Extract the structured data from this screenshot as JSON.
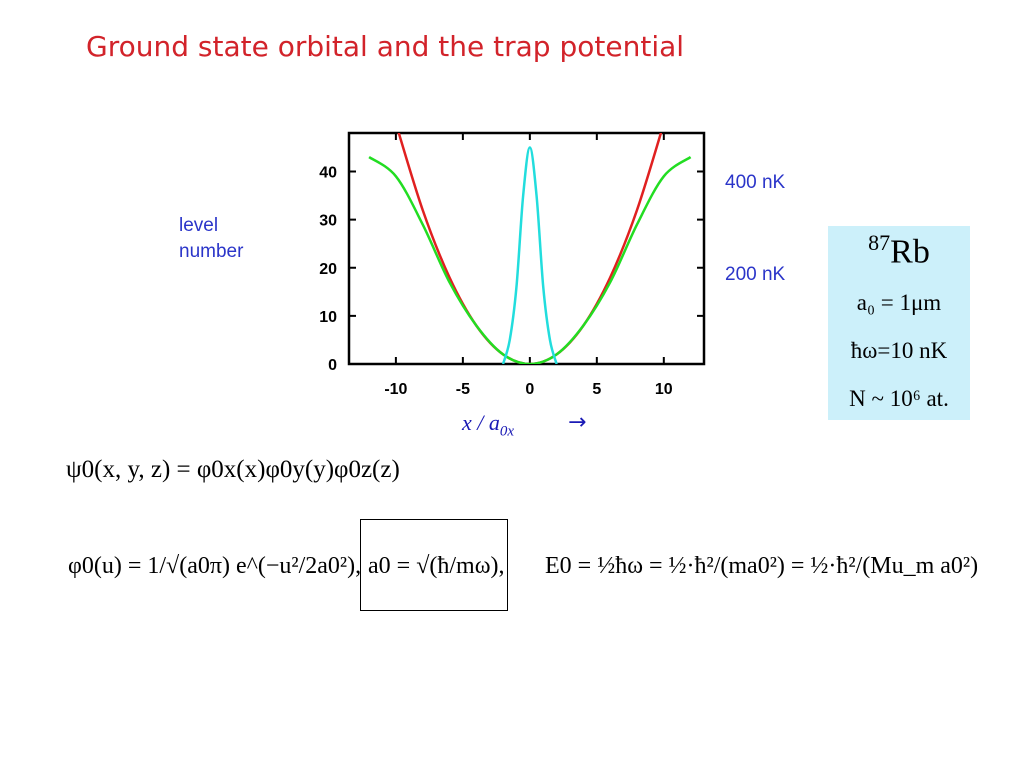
{
  "slide": {
    "title": "Ground state orbital and the trap potential"
  },
  "labels": {
    "level_number_line1": "level",
    "level_number_line2": "number",
    "nk400": "400 nK",
    "nk200": "200 nK",
    "x_axis_var": "x / a",
    "x_axis_sub": "0x",
    "arrow": "→"
  },
  "rb_box": {
    "isotope_mass": "87",
    "element": "Rb",
    "a0_text": "a₀ = 1μm",
    "homega_text": "ħω=10 nK",
    "N_text": "N ~ 10⁶ at."
  },
  "equations": {
    "psi": "ψ0(x, y, z) = φ0x(x)φ0y(y)φ0z(z)",
    "phi0": "φ0(u) = 1/√(a0π) e^(−u²/2a0²),",
    "a0": "a0 = √(ħ/mω),",
    "E0": "E0 = ½ħω = ½·ħ²/(ma0²) = ½·ħ²/(Mu_m a0²)"
  },
  "chart_data": {
    "type": "line",
    "xlim": [
      -13.5,
      13
    ],
    "ylim": [
      0,
      48
    ],
    "x_ticks": [
      -10,
      -5,
      0,
      5,
      10
    ],
    "x_tick_labels": [
      "-10",
      "-5",
      "0",
      "5",
      "10"
    ],
    "y_ticks": [
      0,
      10,
      20,
      30,
      40
    ],
    "y_tick_labels": [
      "0",
      "10",
      "20",
      "30",
      "40"
    ],
    "series": [
      {
        "color": "#e02020",
        "x": [
          -10,
          -8,
          -6,
          -4,
          -2,
          0,
          2,
          4,
          6,
          8,
          10
        ],
        "y": [
          50,
          32,
          18,
          8,
          2,
          0,
          2,
          8,
          18,
          32,
          50
        ]
      },
      {
        "color": "#22dd22",
        "x": [
          -12,
          -10,
          -8,
          -6,
          -4,
          -2,
          0,
          2,
          4,
          6,
          8,
          10,
          12
        ],
        "y": [
          43,
          39,
          29,
          17,
          8,
          2,
          0,
          2,
          8,
          17,
          29,
          39,
          43
        ]
      },
      {
        "color": "#22dddd",
        "x": [
          -2,
          -1.5,
          -1,
          -0.5,
          0,
          0.5,
          1,
          1.5,
          2
        ],
        "y": [
          0,
          5,
          16,
          35,
          45,
          35,
          16,
          5,
          0
        ]
      }
    ]
  }
}
